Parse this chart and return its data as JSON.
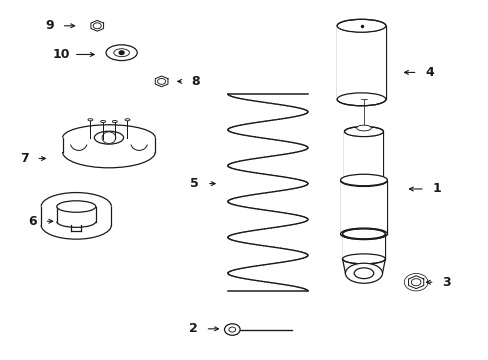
{
  "bg_color": "#ffffff",
  "line_color": "#1a1a1a",
  "fig_width": 4.89,
  "fig_height": 3.6,
  "dpi": 100,
  "label_positions": {
    "1": [
      0.895,
      0.475,
      0.83,
      0.475
    ],
    "2": [
      0.395,
      0.085,
      0.455,
      0.085
    ],
    "3": [
      0.915,
      0.215,
      0.865,
      0.215
    ],
    "4": [
      0.88,
      0.8,
      0.82,
      0.8
    ],
    "5": [
      0.398,
      0.49,
      0.448,
      0.49
    ],
    "6": [
      0.065,
      0.385,
      0.115,
      0.385
    ],
    "7": [
      0.048,
      0.56,
      0.1,
      0.56
    ],
    "8": [
      0.4,
      0.775,
      0.355,
      0.775
    ],
    "9": [
      0.1,
      0.93,
      0.16,
      0.93
    ],
    "10": [
      0.125,
      0.85,
      0.2,
      0.85
    ]
  }
}
